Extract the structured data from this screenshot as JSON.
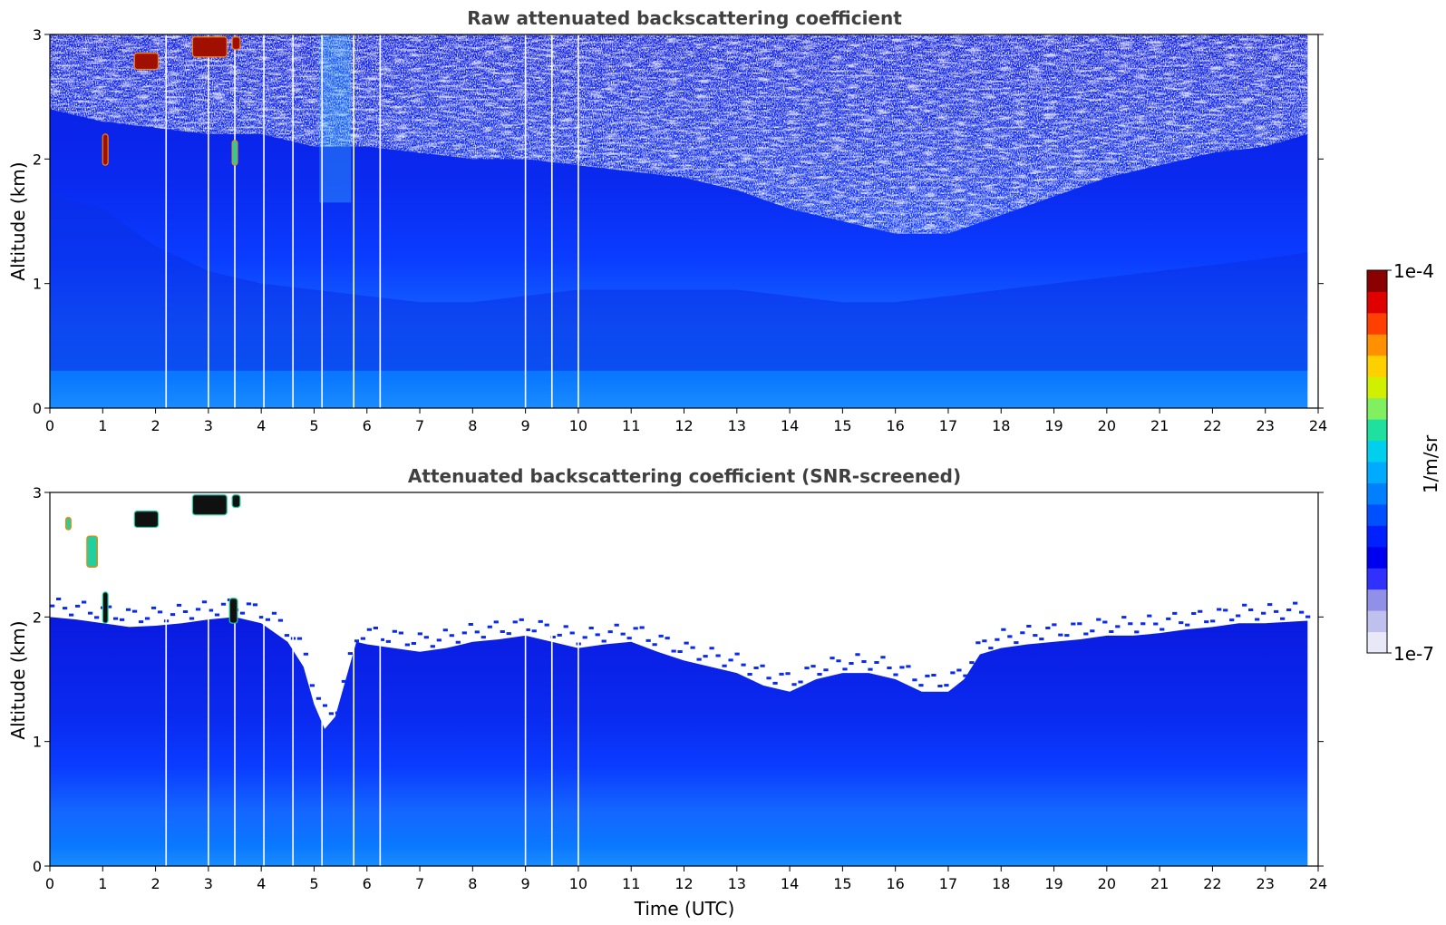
{
  "chart_data": [
    {
      "type": "heatmap",
      "title": "Raw attenuated backscattering coefficient",
      "xlabel": "",
      "ylabel": "Altitude (km)",
      "xlim": [
        0,
        24
      ],
      "ylim": [
        0,
        3
      ],
      "x_ticks": [
        0,
        1,
        2,
        3,
        4,
        5,
        6,
        7,
        8,
        9,
        10,
        11,
        12,
        13,
        14,
        15,
        16,
        17,
        18,
        19,
        20,
        21,
        22,
        23,
        24
      ],
      "y_ticks": [
        0,
        1,
        2,
        3
      ],
      "data_end_time": 23.8,
      "gap_times": [
        2.2,
        3.0,
        3.5,
        4.05,
        4.6,
        5.15,
        5.75,
        6.25,
        9.0,
        9.5,
        10.0
      ],
      "noise_floor_profile": {
        "time": [
          0,
          1,
          2,
          3,
          4,
          5,
          6,
          7,
          8,
          9,
          10,
          11,
          12,
          13,
          14,
          15,
          16,
          17,
          18,
          19,
          20,
          21,
          22,
          23,
          23.8
        ],
        "altitude_km": [
          2.4,
          2.3,
          2.25,
          2.2,
          2.2,
          2.1,
          2.1,
          2.05,
          2.0,
          2.0,
          1.95,
          1.9,
          1.85,
          1.75,
          1.6,
          1.5,
          1.4,
          1.4,
          1.55,
          1.7,
          1.85,
          1.95,
          2.05,
          2.1,
          2.2
        ]
      },
      "aerosol_layer_top_km": {
        "time": [
          0,
          1,
          2,
          3,
          4,
          5,
          6,
          7,
          8,
          9,
          10,
          11,
          12,
          13,
          14,
          15,
          16,
          17,
          18,
          19,
          20,
          21,
          22,
          23,
          23.8
        ],
        "altitude_km": [
          1.7,
          1.6,
          1.3,
          1.1,
          1.0,
          0.95,
          0.9,
          0.85,
          0.85,
          0.9,
          0.95,
          0.95,
          0.95,
          0.95,
          0.9,
          0.85,
          0.85,
          0.9,
          0.95,
          1.0,
          1.05,
          1.1,
          1.15,
          1.2,
          1.25
        ]
      },
      "cloud_patches": [
        {
          "time_start": 1.6,
          "time_end": 2.05,
          "alt_low_km": 2.72,
          "alt_high_km": 2.85,
          "level": "high"
        },
        {
          "time_start": 2.7,
          "time_end": 3.35,
          "alt_low_km": 2.82,
          "alt_high_km": 2.98,
          "level": "high"
        },
        {
          "time_start": 3.45,
          "time_end": 3.6,
          "alt_low_km": 2.88,
          "alt_high_km": 2.98,
          "level": "high"
        },
        {
          "time_start": 1.0,
          "time_end": 1.1,
          "alt_low_km": 1.95,
          "alt_high_km": 2.2,
          "level": "high"
        },
        {
          "time_start": 3.45,
          "time_end": 3.55,
          "alt_low_km": 1.95,
          "alt_high_km": 2.15,
          "level": "mid"
        }
      ]
    },
    {
      "type": "heatmap",
      "title": "Attenuated backscattering coefficient (SNR-screened)",
      "xlabel": "Time (UTC)",
      "ylabel": "Altitude (km)",
      "xlim": [
        0,
        24
      ],
      "ylim": [
        0,
        3
      ],
      "x_ticks": [
        0,
        1,
        2,
        3,
        4,
        5,
        6,
        7,
        8,
        9,
        10,
        11,
        12,
        13,
        14,
        15,
        16,
        17,
        18,
        19,
        20,
        21,
        22,
        23,
        24
      ],
      "y_ticks": [
        0,
        1,
        2,
        3
      ],
      "data_end_time": 23.8,
      "gap_times": [
        2.2,
        3.0,
        3.5,
        4.05,
        4.6,
        5.15,
        5.75,
        6.25,
        9.0,
        9.5,
        10.0
      ],
      "screen_top_profile": {
        "time": [
          0,
          0.5,
          1,
          1.5,
          2,
          2.5,
          3,
          3.5,
          4,
          4.5,
          4.8,
          5.0,
          5.2,
          5.4,
          5.6,
          5.8,
          6,
          6.5,
          7,
          7.5,
          8,
          8.5,
          9,
          9.5,
          10,
          10.5,
          11,
          11.5,
          12,
          12.5,
          13,
          13.5,
          14,
          14.5,
          15,
          15.5,
          16,
          16.5,
          17,
          17.3,
          17.6,
          18,
          18.5,
          19,
          19.5,
          20,
          20.5,
          21,
          21.5,
          22,
          22.5,
          23,
          23.8
        ],
        "altitude_km": [
          2.0,
          1.98,
          1.95,
          1.92,
          1.93,
          1.95,
          1.98,
          2.0,
          1.95,
          1.8,
          1.6,
          1.3,
          1.1,
          1.2,
          1.5,
          1.8,
          1.78,
          1.75,
          1.72,
          1.75,
          1.8,
          1.82,
          1.85,
          1.8,
          1.75,
          1.78,
          1.8,
          1.72,
          1.65,
          1.6,
          1.55,
          1.45,
          1.4,
          1.5,
          1.55,
          1.55,
          1.5,
          1.4,
          1.4,
          1.5,
          1.7,
          1.75,
          1.78,
          1.8,
          1.82,
          1.85,
          1.85,
          1.87,
          1.9,
          1.92,
          1.95,
          1.95,
          1.97
        ]
      },
      "cloud_patches": [
        {
          "time_start": 1.6,
          "time_end": 2.05,
          "alt_low_km": 2.72,
          "alt_high_km": 2.85,
          "level": "black"
        },
        {
          "time_start": 2.7,
          "time_end": 3.35,
          "alt_low_km": 2.82,
          "alt_high_km": 2.98,
          "level": "black"
        },
        {
          "time_start": 3.45,
          "time_end": 3.6,
          "alt_low_km": 2.88,
          "alt_high_km": 2.98,
          "level": "black"
        },
        {
          "time_start": 1.0,
          "time_end": 1.1,
          "alt_low_km": 1.95,
          "alt_high_km": 2.2,
          "level": "black"
        },
        {
          "time_start": 3.4,
          "time_end": 3.55,
          "alt_low_km": 1.95,
          "alt_high_km": 2.15,
          "level": "black"
        },
        {
          "time_start": 0.3,
          "time_end": 0.4,
          "alt_low_km": 2.7,
          "alt_high_km": 2.8,
          "level": "mid"
        },
        {
          "time_start": 0.7,
          "time_end": 0.9,
          "alt_low_km": 2.4,
          "alt_high_km": 2.65,
          "level": "mid"
        }
      ]
    }
  ],
  "colorbar": {
    "label": "1/m/sr",
    "max_label": "1e-4",
    "min_label": "1e-7",
    "scale": "log",
    "colors": [
      "#e8e8f8",
      "#c0c0ee",
      "#9090e8",
      "#3030ff",
      "#0000f0",
      "#0020ff",
      "#0050ff",
      "#0080ff",
      "#00aaff",
      "#00d0ee",
      "#20e0a0",
      "#80f060",
      "#d0f000",
      "#ffd000",
      "#ff9000",
      "#ff4000",
      "#e00000",
      "#8b0000"
    ]
  }
}
